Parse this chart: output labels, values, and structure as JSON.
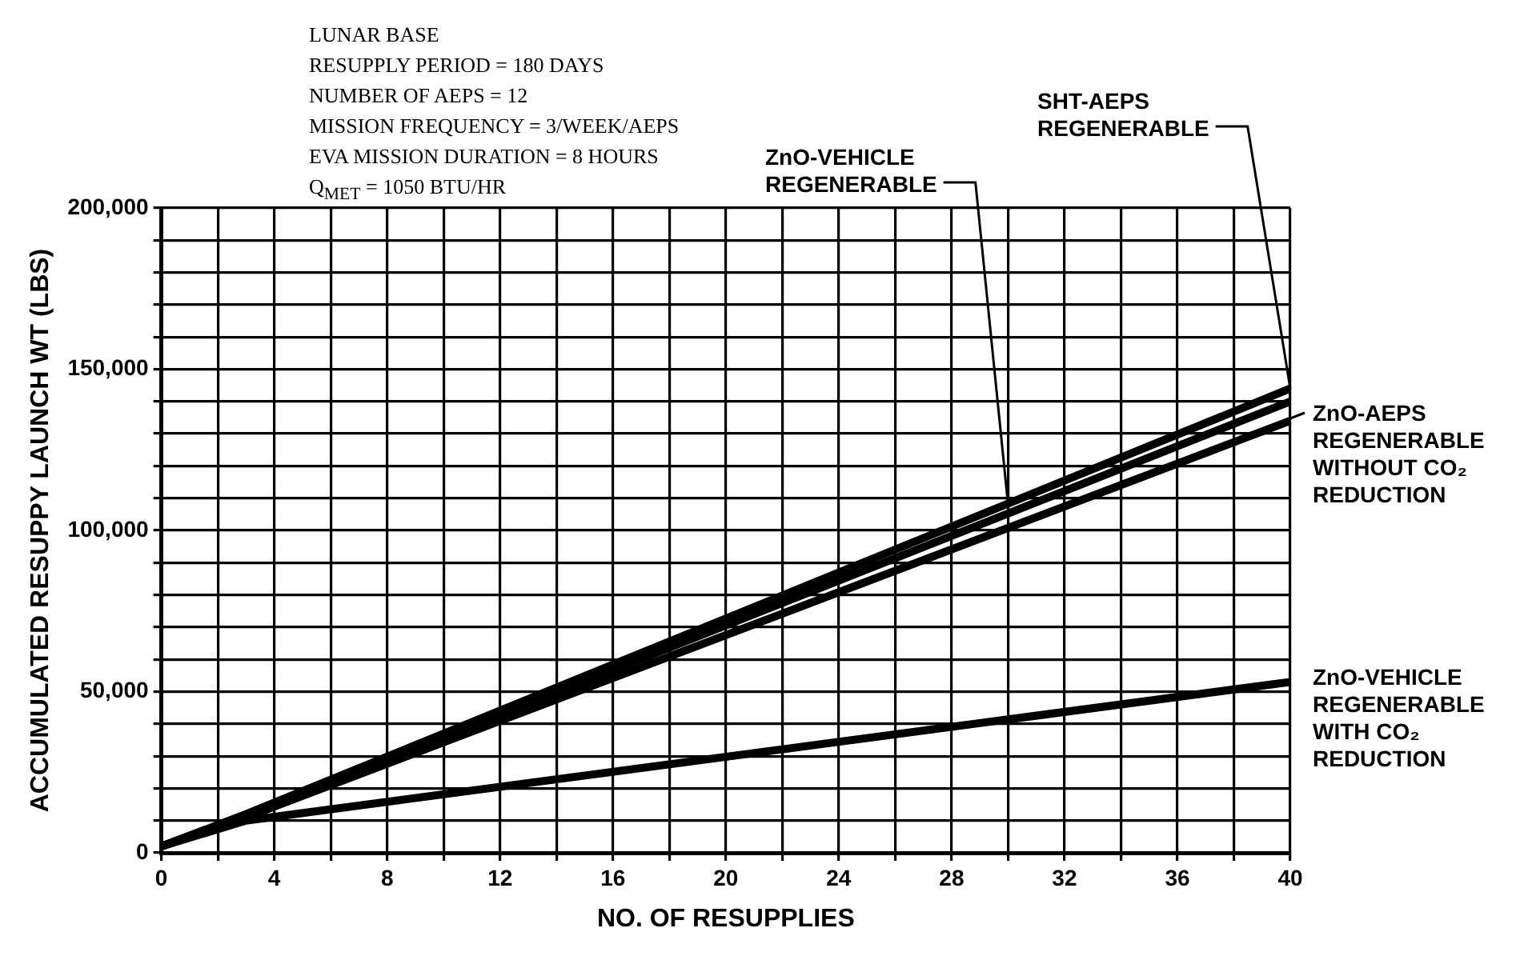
{
  "chart_data": {
    "type": "line",
    "xlabel": "NO. OF RESUPPLIES",
    "ylabel": "ACCUMULATED RESUPPY LAUNCH WT (LBS)",
    "x": [
      0,
      3,
      40
    ],
    "series": [
      {
        "color": "#000000",
        "values": [
          2000,
          12000,
          144000
        ]
      },
      {
        "color": "#000000",
        "values": [
          2000,
          11500,
          140000
        ]
      },
      {
        "color": "#000000",
        "values": [
          2000,
          11000,
          134000
        ]
      },
      {
        "color": "#000000",
        "values": [
          2000,
          10000,
          53000
        ]
      }
    ],
    "xlim": [
      0,
      40
    ],
    "xticks": [
      0,
      {
        "value": 2,
        "label": null
      },
      4,
      {
        "value": 6,
        "label": null
      },
      8,
      {
        "value": 10,
        "label": null
      },
      12,
      {
        "value": 14,
        "label": null
      },
      16,
      {
        "value": 18,
        "label": null
      },
      20,
      {
        "value": 22,
        "label": null
      },
      24,
      {
        "value": 26,
        "label": null
      },
      28,
      {
        "value": 30,
        "label": null
      },
      32,
      {
        "value": 34,
        "label": null
      },
      36,
      {
        "value": 38,
        "label": null
      },
      40
    ],
    "ylim": [
      0,
      200000
    ],
    "yticks": [
      0,
      {
        "value": 10000,
        "label": null
      },
      {
        "value": 20000,
        "label": null
      },
      {
        "value": 30000,
        "label": null
      },
      {
        "value": 40000,
        "label": null
      },
      {
        "value": 50000,
        "label": "50,000"
      },
      {
        "value": 60000,
        "label": null
      },
      {
        "value": 70000,
        "label": null
      },
      {
        "value": 80000,
        "label": null
      },
      {
        "value": 90000,
        "label": null
      },
      {
        "value": 100000,
        "label": "100,000"
      },
      {
        "value": 110000,
        "label": null
      },
      {
        "value": 120000,
        "label": null
      },
      {
        "value": 130000,
        "label": null
      },
      {
        "value": 140000,
        "label": null
      },
      {
        "value": 150000,
        "label": "150,000"
      },
      {
        "value": 160000,
        "label": null
      },
      {
        "value": 170000,
        "label": null
      },
      {
        "value": 180000,
        "label": null
      },
      {
        "value": 190000,
        "label": null
      },
      {
        "value": 200000,
        "label": "200,000"
      }
    ],
    "grid": true,
    "legend": false,
    "marker": "none",
    "line_style": "solid",
    "annotations": [
      "LUNAR BASE",
      "RESUPPLY PERIOD = 180 DAYS",
      "NUMBER OF AEPS = 12",
      "MISSION FREQUENCY = 3/WEEK/AEPS",
      "EVA MISSION DURATION = 8 HOURS",
      "Q$_{MET}$ = 1050 BTU/HR",
      {
        "text": "SHT-AEPS\nREGENERABLE",
        "x": 40,
        "y": 144000
      },
      {
        "text": "ZnO-VEHICLE\nREGENERABLE",
        "x": 30,
        "y": 108000
      },
      {
        "text": "ZnO-AEPS\nREGENERABLE\nWITHOUT CO₂\nREDUCTION",
        "x": 36,
        "y": 121000
      },
      {
        "text": "ZnO-VEHICLE\nREGENERABLE\nWITH CO₂\nREDUCTION",
        "x": 40,
        "y": 53000
      }
    ]
  }
}
